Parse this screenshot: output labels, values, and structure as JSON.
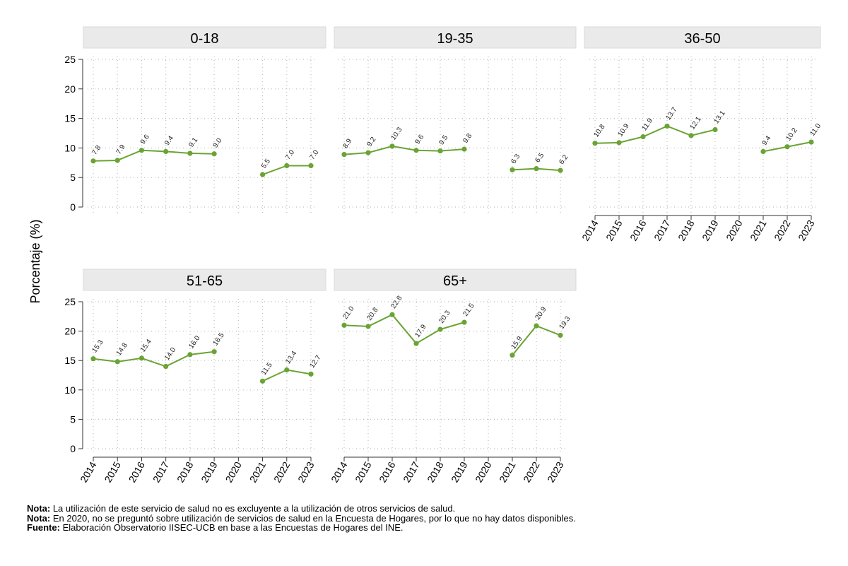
{
  "chart_data": {
    "type": "line",
    "ylabel": "Porcentaje (%)",
    "ylim": [
      0,
      25
    ],
    "yticks": [
      0,
      5,
      10,
      15,
      20,
      25
    ],
    "categories": [
      "2014",
      "2015",
      "2016",
      "2017",
      "2018",
      "2019",
      "2020",
      "2021",
      "2022",
      "2023"
    ],
    "grid": true,
    "line_color": "#6aa434",
    "panels": [
      {
        "title": "0-18",
        "values": [
          7.8,
          7.9,
          9.6,
          9.4,
          9.1,
          9.0,
          null,
          5.5,
          7.0,
          7.0
        ]
      },
      {
        "title": "19-35",
        "values": [
          8.9,
          9.2,
          10.3,
          9.6,
          9.5,
          9.8,
          null,
          6.3,
          6.5,
          6.2
        ]
      },
      {
        "title": "36-50",
        "values": [
          10.8,
          10.9,
          11.9,
          13.7,
          12.1,
          13.1,
          null,
          9.4,
          10.2,
          11.0
        ]
      },
      {
        "title": "51-65",
        "values": [
          15.3,
          14.8,
          15.4,
          14.0,
          16.0,
          16.5,
          null,
          11.5,
          13.4,
          12.7
        ]
      },
      {
        "title": "65+",
        "values": [
          21.0,
          20.8,
          22.8,
          17.9,
          20.3,
          21.5,
          null,
          15.9,
          20.9,
          19.3
        ]
      }
    ]
  },
  "notes": [
    {
      "label": "Nota:",
      "text": " La utilización de este servicio de salud no es excluyente a la utilización de otros servicios de salud."
    },
    {
      "label": "Nota:",
      "text": " En 2020, no se preguntó sobre utilización de servicios de salud en la Encuesta de Hogares, por lo que no hay datos disponibles."
    },
    {
      "label": "Fuente:",
      "text": " Elaboración Observatorio IISEC-UCB en base a las Encuestas de Hogares del INE."
    }
  ]
}
